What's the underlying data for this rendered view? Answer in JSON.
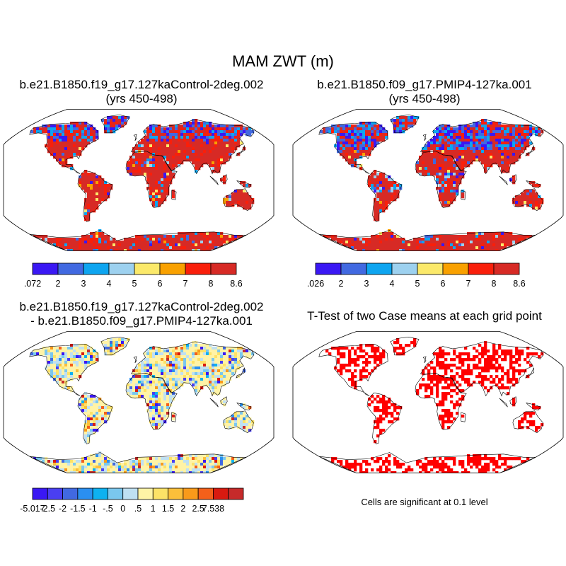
{
  "page": {
    "title": "MAM ZWT (m)",
    "significance_note": "Cells are significant at 0.1 level"
  },
  "chart_data": [
    {
      "type": "heatmap",
      "title_line1": "b.e21.B1850.f19_g17.127kaControl-2deg.002",
      "title_line2": "(yrs 450-498)",
      "projection": "robinson",
      "colorbar": {
        "labels": [
          ".072",
          "2",
          "3",
          "4",
          "5",
          "6",
          "7",
          "8",
          "8.6"
        ],
        "colors": [
          "#3a18f4",
          "#4169e1",
          "#0ea5f0",
          "#9dd1ef",
          "#fbe96a",
          "#f9a100",
          "#f91f0b",
          "#d72a25"
        ]
      }
    },
    {
      "type": "heatmap",
      "title_line1": "b.e21.B1850.f09_g17.PMIP4-127ka.001",
      "title_line2": "(yrs 450-498)",
      "projection": "robinson",
      "colorbar": {
        "labels": [
          ".026",
          "2",
          "3",
          "4",
          "5",
          "6",
          "7",
          "8",
          "8.6"
        ],
        "colors": [
          "#3a18f4",
          "#4169e1",
          "#0ea5f0",
          "#9dd1ef",
          "#fbe96a",
          "#f9a100",
          "#f91f0b",
          "#d72a25"
        ]
      }
    },
    {
      "type": "heatmap",
      "title_line1": "b.e21.B1850.f19_g17.127kaControl-2deg.002",
      "title_line2": "- b.e21.B1850.f09_g17.PMIP4-127ka.001",
      "projection": "robinson",
      "colorbar": {
        "labels": [
          "-5.017",
          "-2.5",
          "-2",
          "-1.5",
          "-1",
          "-.5",
          "0",
          ".5",
          "1",
          "1.5",
          "2",
          "2.5",
          "7.538"
        ],
        "colors": [
          "#3a18f4",
          "#4a3ff2",
          "#4169e1",
          "#2a8ff0",
          "#0eb1f0",
          "#7ac7ee",
          "#bfe0f2",
          "#fff3a6",
          "#fde267",
          "#fcbf3a",
          "#f99a1a",
          "#f4601a",
          "#d91a10",
          "#c62a2a"
        ]
      }
    },
    {
      "type": "heatmap",
      "title": "T-Test of two Case means at each grid point",
      "projection": "robinson",
      "colors": {
        "significant": "#ff0000",
        "not_significant": "#ffffff"
      }
    }
  ]
}
